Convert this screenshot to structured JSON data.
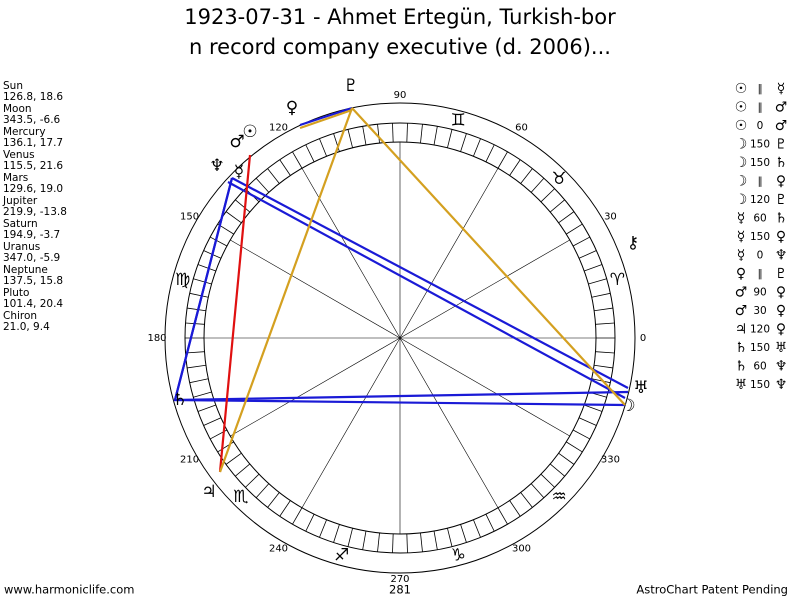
{
  "header": {
    "title_lines": [
      "1923-07-31 - Ahmet Ertegün, Turkish-bor",
      "n record company executive (d. 2006)..."
    ]
  },
  "planets": [
    {
      "name": "Sun",
      "coords": "126.8, 18.6",
      "glyph": "☉"
    },
    {
      "name": "Moon",
      "coords": "343.5, -6.6",
      "glyph": "☽"
    },
    {
      "name": "Mercury",
      "coords": "136.1, 17.7",
      "glyph": "☿"
    },
    {
      "name": "Venus",
      "coords": "115.5, 21.6",
      "glyph": "♀"
    },
    {
      "name": "Mars",
      "coords": "129.6, 19.0",
      "glyph": "♂"
    },
    {
      "name": "Jupiter",
      "coords": "219.9, -13.8",
      "glyph": "♃"
    },
    {
      "name": "Saturn",
      "coords": "194.9, -3.7",
      "glyph": "♄"
    },
    {
      "name": "Uranus",
      "coords": "347.0, -5.9",
      "glyph": "♅"
    },
    {
      "name": "Neptune",
      "coords": "137.5, 15.8",
      "glyph": "♆"
    },
    {
      "name": "Pluto",
      "coords": "101.4, 20.4",
      "glyph": "♇"
    },
    {
      "name": "Chiron",
      "coords": "21.0, 9.4",
      "glyph": "⚷"
    }
  ],
  "wheel": {
    "degree_labels": [
      0,
      30,
      60,
      90,
      120,
      150,
      180,
      210,
      240,
      270,
      300,
      330
    ],
    "signs": [
      "♈",
      "♉",
      "♊",
      null,
      null,
      "♍",
      null,
      "♏",
      "♐",
      "♑",
      "♒",
      null
    ],
    "bottom_label": "281"
  },
  "aspects": [
    [
      "☉",
      "∥",
      "☿"
    ],
    [
      "☉",
      "∥",
      "♂"
    ],
    [
      "☉",
      "0",
      "♂"
    ],
    [
      "☽",
      "150",
      "♇"
    ],
    [
      "☽",
      "150",
      "♄"
    ],
    [
      "☽",
      "∥",
      "♀"
    ],
    [
      "☽",
      "120",
      "♇"
    ],
    [
      "☿",
      "60",
      "♄"
    ],
    [
      "☿",
      "150",
      "♀"
    ],
    [
      "☿",
      "0",
      "♆"
    ],
    [
      "♀",
      "∥",
      "♇"
    ],
    [
      "♂",
      "90",
      "♀"
    ],
    [
      "♂",
      "30",
      "♀"
    ],
    [
      "♃",
      "120",
      "♀"
    ],
    [
      "♄",
      "150",
      "♅"
    ],
    [
      "♄",
      "60",
      "♆"
    ],
    [
      "♅",
      "150",
      "♆"
    ]
  ],
  "footer": {
    "left": "www.harmoniclife.com",
    "right": "AstroChart Patent Pending"
  }
}
